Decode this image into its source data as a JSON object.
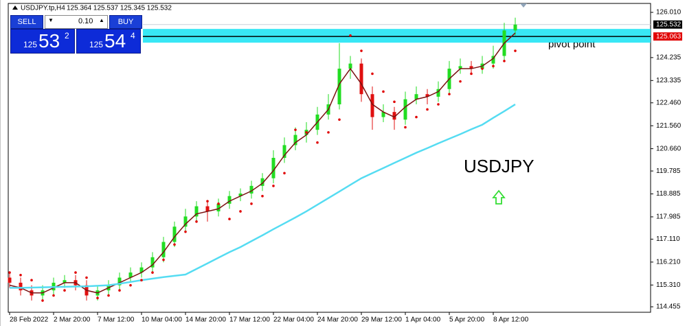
{
  "header": {
    "symbol": "USDJPY.tp,H4",
    "ohlc": "125.364 125.537 125.345 125.532"
  },
  "trade_panel": {
    "sell": "SELL",
    "buy": "BUY",
    "lot": "0.10",
    "bid": {
      "prefix": "125",
      "big": "53",
      "small": "2"
    },
    "ask": {
      "prefix": "125",
      "big": "54",
      "small": "4"
    }
  },
  "chart_data": {
    "type": "candlestick",
    "categories": [
      "28 Feb 2022",
      null,
      null,
      null,
      "2 Mar 20:00",
      null,
      null,
      null,
      "7 Mar 12:00",
      null,
      null,
      null,
      "10 Mar 04:00",
      null,
      null,
      null,
      "14 Mar 20:00",
      null,
      null,
      null,
      "17 Mar 12:00",
      null,
      null,
      null,
      "22 Mar 04:00",
      null,
      null,
      null,
      "24 Mar 20:00",
      null,
      null,
      null,
      "29 Mar 12:00",
      null,
      null,
      null,
      "1 Apr 04:00",
      null,
      null,
      null,
      "5 Apr 20:00",
      null,
      null,
      null,
      "8 Apr 12:00",
      null,
      null
    ],
    "open": [
      115.6,
      115.4,
      115.1,
      114.9,
      115.1,
      115.4,
      115.5,
      115.3,
      114.9,
      115.1,
      115.3,
      115.6,
      115.8,
      116.0,
      116.4,
      117.0,
      117.6,
      118.0,
      118.4,
      118.2,
      118.5,
      118.8,
      118.9,
      119.2,
      119.5,
      120.3,
      120.8,
      121.2,
      121.4,
      122.0,
      122.4,
      123.8,
      124.0,
      122.8,
      121.9,
      122.1,
      121.8,
      122.6,
      122.8,
      122.7,
      123.0,
      123.8,
      123.9,
      123.8,
      124.0,
      124.3,
      125.3
    ],
    "high": [
      115.8,
      115.6,
      115.3,
      115.3,
      115.6,
      115.7,
      115.7,
      115.5,
      115.3,
      115.5,
      115.8,
      116.0,
      116.2,
      116.6,
      117.2,
      117.8,
      118.3,
      118.6,
      118.6,
      118.7,
      119.0,
      119.1,
      119.4,
      119.7,
      120.6,
      121.1,
      121.5,
      121.7,
      122.3,
      122.8,
      124.8,
      124.3,
      124.2,
      123.1,
      122.4,
      122.3,
      122.9,
      123.1,
      123.0,
      123.3,
      124.1,
      124.2,
      124.1,
      124.3,
      124.7,
      125.6,
      125.8
    ],
    "low": [
      115.2,
      114.9,
      114.7,
      114.7,
      114.9,
      115.2,
      115.1,
      114.7,
      114.7,
      114.9,
      115.1,
      115.4,
      115.6,
      115.8,
      116.2,
      116.8,
      117.4,
      117.8,
      117.8,
      118.0,
      118.3,
      118.6,
      118.7,
      119.0,
      119.3,
      120.1,
      120.6,
      120.9,
      121.2,
      121.8,
      122.2,
      123.4,
      122.5,
      121.4,
      121.7,
      121.4,
      121.6,
      122.4,
      122.4,
      122.5,
      122.8,
      123.6,
      123.6,
      123.6,
      123.8,
      124.1,
      125.1
    ],
    "close": [
      115.4,
      115.1,
      114.9,
      115.1,
      115.4,
      115.5,
      115.3,
      114.9,
      115.1,
      115.3,
      115.6,
      115.8,
      116.0,
      116.4,
      117.0,
      117.6,
      118.0,
      118.4,
      118.2,
      118.5,
      118.8,
      118.9,
      119.2,
      119.5,
      120.3,
      120.8,
      121.2,
      121.4,
      122.0,
      122.4,
      123.8,
      124.0,
      122.8,
      121.9,
      122.1,
      121.8,
      122.6,
      122.8,
      122.7,
      123.0,
      123.8,
      123.9,
      123.8,
      124.0,
      124.3,
      125.3,
      125.53
    ],
    "up_color": "#22dd22",
    "down_color": "#e01010",
    "lines": [
      {
        "color": "#7a1010",
        "values": [
          115.3,
          115.2,
          115.0,
          115.0,
          115.2,
          115.4,
          115.4,
          115.1,
          115.0,
          115.2,
          115.4,
          115.6,
          115.8,
          116.1,
          116.6,
          117.2,
          117.7,
          118.1,
          118.2,
          118.3,
          118.6,
          118.8,
          119.0,
          119.3,
          119.8,
          120.4,
          120.9,
          121.2,
          121.7,
          122.2,
          123.2,
          123.8,
          123.2,
          122.4,
          122.1,
          121.9,
          122.3,
          122.6,
          122.7,
          122.9,
          123.4,
          123.8,
          123.8,
          123.9,
          124.2,
          124.8,
          125.2
        ]
      },
      {
        "color": "#55dcf2",
        "values": [
          115.2,
          115.2,
          115.21,
          115.22,
          115.23,
          115.24,
          115.25,
          115.26,
          115.28,
          115.3,
          115.36,
          115.43,
          115.5,
          115.56,
          115.62,
          115.67,
          115.72,
          115.94,
          116.16,
          116.38,
          116.6,
          116.8,
          117.03,
          117.26,
          117.5,
          117.73,
          117.96,
          118.2,
          118.46,
          118.72,
          118.98,
          119.24,
          119.5,
          119.7,
          119.9,
          120.1,
          120.3,
          120.5,
          120.68,
          120.87,
          121.05,
          121.23,
          121.42,
          121.6,
          121.87,
          122.13,
          122.4
        ]
      }
    ],
    "sar": {
      "color": "#e00000",
      "values": [
        115.8,
        115.7,
        115.5,
        114.7,
        114.9,
        115.1,
        115.8,
        115.6,
        114.8,
        114.9,
        115.1,
        115.3,
        115.5,
        115.8,
        116.3,
        116.9,
        117.4,
        117.8,
        118.6,
        118.5,
        117.9,
        118.2,
        118.5,
        118.8,
        119.2,
        119.7,
        121.4,
        121.3,
        120.9,
        121.3,
        121.8,
        125.1,
        124.5,
        123.6,
        122.9,
        122.5,
        121.5,
        121.9,
        122.2,
        122.4,
        122.8,
        123.3,
        123.6,
        123.8,
        123.9,
        124.1,
        124.5
      ]
    },
    "ylim": [
      114.24,
      126.36
    ],
    "yticks": [
      {
        "value": 126.01,
        "label": "126.010"
      },
      124.235,
      123.335,
      {
        "value": 122.46,
        "label": "122.460"
      },
      {
        "value": 121.56,
        "label": "121.560"
      },
      {
        "value": 120.66,
        "label": "120.660"
      },
      119.785,
      118.885,
      117.985,
      {
        "value": 117.11,
        "label": "117.110"
      },
      {
        "value": 116.21,
        "label": "116.210"
      },
      {
        "value": 115.31,
        "label": "115.310"
      },
      114.455
    ],
    "current_price": 125.532,
    "pivot": 125.063,
    "zone": [
      124.82,
      125.36
    ],
    "zone_color": "#22e4f4",
    "pivot_label": "pivot point",
    "symbol_label": "USDJPY"
  }
}
